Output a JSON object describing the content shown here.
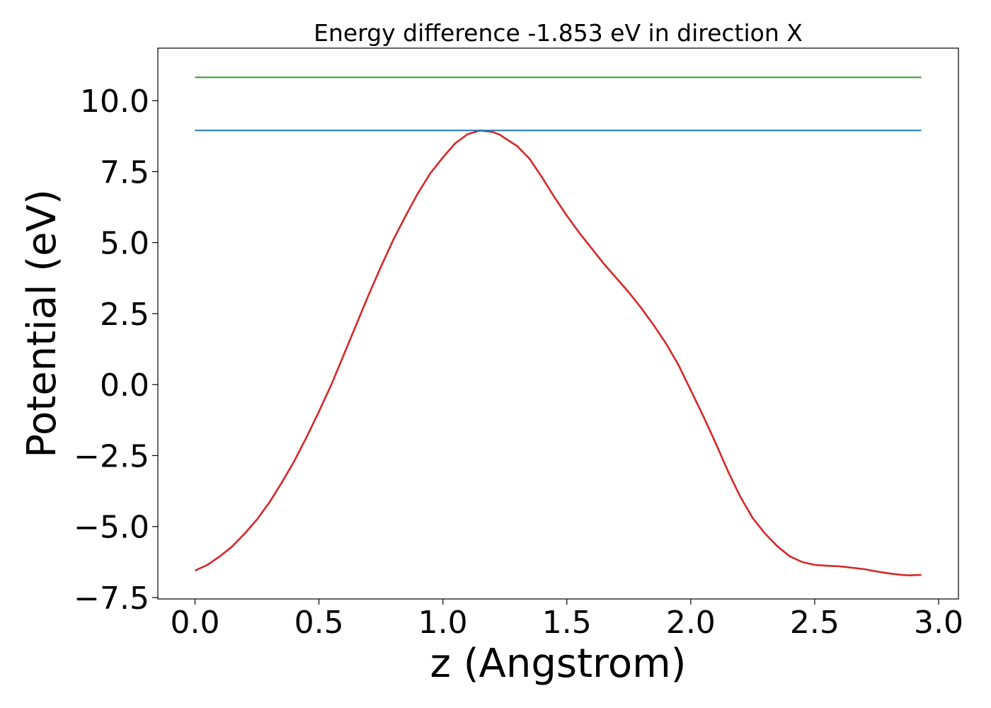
{
  "chart_data": {
    "type": "line",
    "title": "Energy difference -1.853 eV in direction X",
    "xlabel": "z (Angstrom)",
    "ylabel": "Potential (eV)",
    "xlim": [
      -0.15,
      3.08
    ],
    "ylim": [
      -7.55,
      11.85
    ],
    "xticks": [
      0.0,
      0.5,
      1.0,
      1.5,
      2.0,
      2.5,
      3.0
    ],
    "xtick_labels": [
      "0.0",
      "0.5",
      "1.0",
      "1.5",
      "2.0",
      "2.5",
      "3.0"
    ],
    "yticks": [
      -7.5,
      -5.0,
      -2.5,
      0.0,
      2.5,
      5.0,
      7.5,
      10.0
    ],
    "ytick_labels": [
      "−7.5",
      "−5.0",
      "−2.5",
      "0.0",
      "2.5",
      "5.0",
      "7.5",
      "10.0"
    ],
    "grid": false,
    "legend": "none",
    "series": [
      {
        "color": "#d62728",
        "x": [
          0.0,
          0.05,
          0.1,
          0.15,
          0.2,
          0.25,
          0.3,
          0.35,
          0.4,
          0.45,
          0.5,
          0.55,
          0.6,
          0.65,
          0.7,
          0.75,
          0.8,
          0.85,
          0.9,
          0.95,
          1.0,
          1.05,
          1.1,
          1.15,
          1.2,
          1.23,
          1.25,
          1.3,
          1.35,
          1.4,
          1.45,
          1.5,
          1.55,
          1.6,
          1.65,
          1.7,
          1.75,
          1.8,
          1.85,
          1.9,
          1.95,
          2.0,
          2.05,
          2.1,
          2.15,
          2.2,
          2.25,
          2.3,
          2.35,
          2.4,
          2.45,
          2.5,
          2.55,
          2.6,
          2.65,
          2.7,
          2.75,
          2.8,
          2.85,
          2.88,
          2.93
        ],
        "y": [
          -6.55,
          -6.35,
          -6.05,
          -5.7,
          -5.25,
          -4.75,
          -4.15,
          -3.45,
          -2.7,
          -1.85,
          -0.95,
          0.0,
          1.05,
          2.1,
          3.15,
          4.15,
          5.1,
          5.95,
          6.75,
          7.45,
          8.0,
          8.5,
          8.82,
          8.95,
          8.9,
          8.8,
          8.68,
          8.4,
          7.95,
          7.3,
          6.6,
          5.95,
          5.35,
          4.8,
          4.25,
          3.75,
          3.25,
          2.7,
          2.1,
          1.45,
          0.7,
          -0.2,
          -1.1,
          -2.05,
          -3.05,
          -3.95,
          -4.7,
          -5.25,
          -5.7,
          -6.05,
          -6.25,
          -6.35,
          -6.38,
          -6.4,
          -6.45,
          -6.5,
          -6.58,
          -6.65,
          -6.7,
          -6.72,
          -6.7
        ]
      },
      {
        "color": "#1f77b4",
        "x": [
          0.0,
          2.93
        ],
        "y": [
          8.95,
          8.95
        ]
      },
      {
        "color": "#2ca02c",
        "x": [
          0.0,
          2.93
        ],
        "y": [
          10.82,
          10.82
        ]
      }
    ]
  }
}
